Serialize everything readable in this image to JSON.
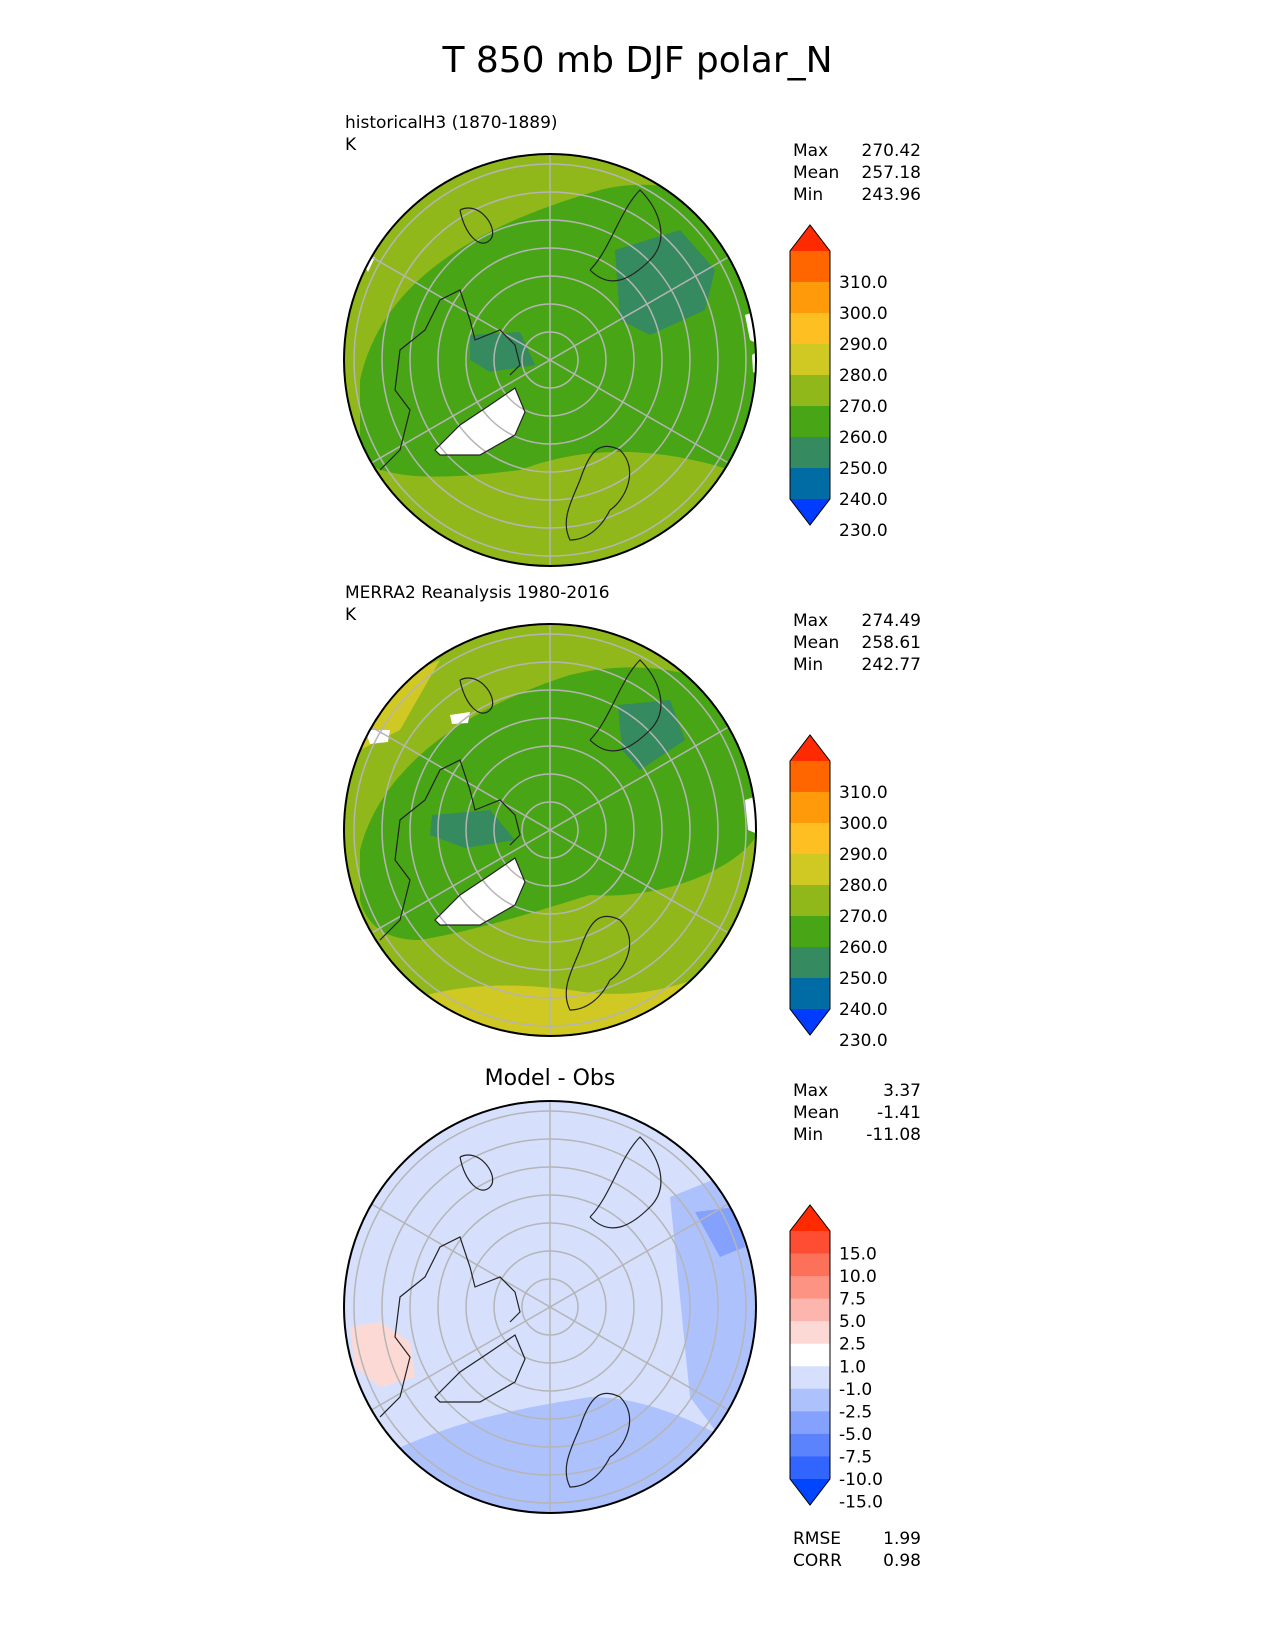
{
  "figure": {
    "title": "T 850 mb DJF polar_N"
  },
  "panels": [
    {
      "label_line1": "historicalH3 (1870-1889)",
      "label_line2": "K",
      "stats": {
        "max_label": "Max",
        "max": "270.42",
        "mean_label": "Mean",
        "mean": "257.18",
        "min_label": "Min",
        "min": "243.96"
      },
      "colorbar": {
        "levels": [
          "310.0",
          "300.0",
          "290.0",
          "280.0",
          "270.0",
          "260.0",
          "250.0",
          "240.0",
          "230.0"
        ],
        "colors": [
          "#ff2a00",
          "#ff6600",
          "#ff9a0a",
          "#fdbf21",
          "#d0c823",
          "#90b81a",
          "#48a516",
          "#358a5f",
          "#016ca3",
          "#003cff"
        ]
      }
    },
    {
      "label_line1": "MERRA2 Reanalysis 1980-2016",
      "label_line2": "K",
      "stats": {
        "max_label": "Max",
        "max": "274.49",
        "mean_label": "Mean",
        "mean": "258.61",
        "min_label": "Min",
        "min": "242.77"
      },
      "colorbar": {
        "levels": [
          "310.0",
          "300.0",
          "290.0",
          "280.0",
          "270.0",
          "260.0",
          "250.0",
          "240.0",
          "230.0"
        ],
        "colors": [
          "#ff2a00",
          "#ff6600",
          "#ff9a0a",
          "#fdbf21",
          "#d0c823",
          "#90b81a",
          "#48a516",
          "#358a5f",
          "#016ca3",
          "#003cff"
        ]
      }
    },
    {
      "title": "Model - Obs",
      "stats": {
        "max_label": "Max",
        "max": "3.37",
        "mean_label": "Mean",
        "mean": "-1.41",
        "min_label": "Min",
        "min": "-11.08"
      },
      "colorbar": {
        "levels": [
          "15.0",
          "10.0",
          "7.5",
          "5.0",
          "2.5",
          "1.0",
          "-1.0",
          "-2.5",
          "-5.0",
          "-7.5",
          "-10.0",
          "-15.0"
        ],
        "colors": [
          "#ff2a00",
          "#fe4d32",
          "#fd7059",
          "#fd9383",
          "#fdb6ad",
          "#fdd9d5",
          "#ffffff",
          "#d6e0fd",
          "#adc1fd",
          "#84a2fd",
          "#5b83fd",
          "#3264fe",
          "#0045ff"
        ]
      },
      "metrics": {
        "rmse_label": "RMSE",
        "rmse": "1.99",
        "corr_label": "CORR",
        "corr": "0.98"
      }
    }
  ]
}
